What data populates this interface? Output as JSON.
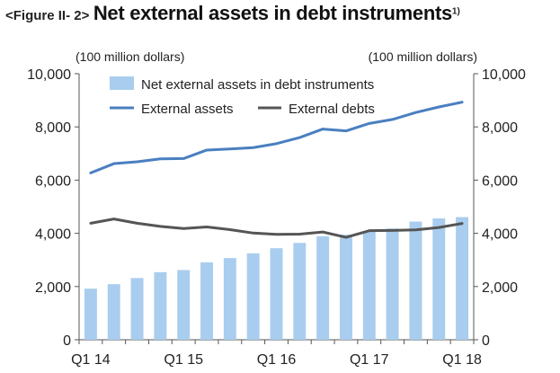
{
  "figure": {
    "prefix": "<Figure II- 2>",
    "title": "Net external assets in debt instruments",
    "title_sup": "1)"
  },
  "chart_data": {
    "type": "bar",
    "title": "Net external assets in debt instruments",
    "unit_left": "(100 million dollars)",
    "unit_right": "(100 million dollars)",
    "x": [
      "Q1 14",
      "Q2 14",
      "Q3 14",
      "Q4 14",
      "Q1 15",
      "Q2 15",
      "Q3 15",
      "Q4 15",
      "Q1 16",
      "Q2 16",
      "Q3 16",
      "Q4 16",
      "Q1 17",
      "Q2 17",
      "Q3 17",
      "Q4 17",
      "Q1 18"
    ],
    "x_tick_labels": [
      {
        "index": 0,
        "label": "Q1 14"
      },
      {
        "index": 4,
        "label": "Q1 15"
      },
      {
        "index": 8,
        "label": "Q1 16"
      },
      {
        "index": 12,
        "label": "Q1 17"
      },
      {
        "index": 16,
        "label": "Q1 18"
      }
    ],
    "ylim": [
      0,
      10000
    ],
    "y_ticks": [
      "0",
      "2,000",
      "4,000",
      "6,000",
      "8,000",
      "10,000"
    ],
    "y_tick_values": [
      0,
      2000,
      4000,
      6000,
      8000,
      10000
    ],
    "legend_position": "top-center",
    "series": [
      {
        "name": "Net external assets in debt instruments",
        "kind": "bar",
        "color": "#a9cdee",
        "values": [
          1920,
          2090,
          2320,
          2540,
          2620,
          2910,
          3070,
          3250,
          3440,
          3640,
          3890,
          3950,
          4080,
          4180,
          4440,
          4560,
          4610
        ]
      },
      {
        "name": "External assets",
        "kind": "line",
        "color": "#4a7fc1",
        "values": [
          6270,
          6620,
          6690,
          6800,
          6810,
          7130,
          7170,
          7220,
          7370,
          7600,
          7920,
          7850,
          8130,
          8280,
          8540,
          8750,
          8930
        ]
      },
      {
        "name": "External debts",
        "kind": "line",
        "color": "#555555",
        "values": [
          4380,
          4540,
          4380,
          4260,
          4180,
          4240,
          4140,
          4010,
          3960,
          3970,
          4050,
          3850,
          4100,
          4110,
          4130,
          4220,
          4370
        ]
      }
    ]
  }
}
